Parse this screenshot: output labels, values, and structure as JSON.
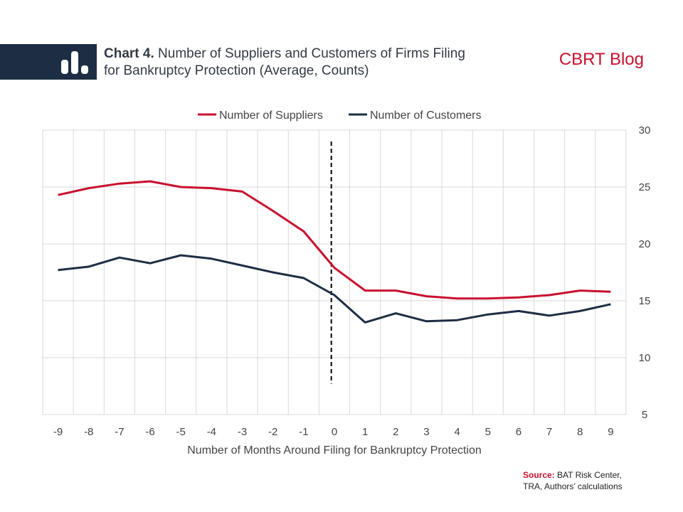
{
  "header": {
    "title_prefix": "Chart 4.",
    "title_line1": "Number of Suppliers and Customers of Firms Filing",
    "title_line2": "for Bankruptcy Protection (Average, Counts)",
    "brand": "CBRT Blog"
  },
  "source": {
    "label": "Source:",
    "text_line1": "BAT Risk Center,",
    "text_line2": "TRA, Authors’ calculations"
  },
  "colors": {
    "suppliers": "#c8102e",
    "customers": "#1d2e44",
    "grid": "#d9d9d9"
  },
  "chart_data": {
    "type": "line",
    "x": [
      -9,
      -8,
      -7,
      -6,
      -5,
      -4,
      -3,
      -2,
      -1,
      0,
      1,
      2,
      3,
      4,
      5,
      6,
      7,
      8,
      9
    ],
    "x_tick_labels": [
      "-9",
      "-8",
      "-7",
      "-6",
      "-5",
      "-4",
      "-3",
      "-2",
      "-1",
      "0",
      "1",
      "2",
      "3",
      "4",
      "5",
      "6",
      "7",
      "8",
      "9"
    ],
    "xlabel": "Number of Months Around Filing for Bankruptcy Protection",
    "ylabel": "",
    "ylim": [
      5,
      30
    ],
    "y_ticks": [
      5,
      10,
      15,
      20,
      25,
      30
    ],
    "y_axis_side": "right",
    "grid": true,
    "legend_position": "top-center",
    "vertical_marker": {
      "x": -0.1,
      "y_from": 7.7,
      "y_to": 29.0,
      "style": "dashed"
    },
    "series": [
      {
        "name": "Number of Suppliers",
        "color": "#c8102e",
        "values": [
          24.3,
          24.9,
          25.3,
          25.5,
          25.0,
          24.9,
          24.6,
          22.9,
          21.1,
          17.9,
          15.9,
          15.9,
          15.4,
          15.2,
          15.2,
          15.3,
          15.5,
          15.9,
          15.8
        ]
      },
      {
        "name": "Number of Customers",
        "color": "#1d2e44",
        "values": [
          17.7,
          18.0,
          18.8,
          18.3,
          19.0,
          18.7,
          18.1,
          17.5,
          17.0,
          15.5,
          13.1,
          13.9,
          13.2,
          13.3,
          13.8,
          14.1,
          13.7,
          14.1,
          14.7
        ]
      }
    ]
  }
}
